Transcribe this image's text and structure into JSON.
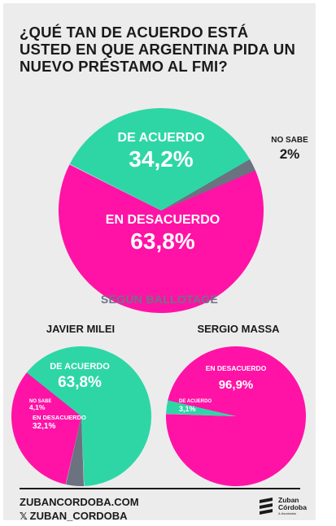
{
  "title": "¿QUÉ TAN DE ACUERDO ESTÁ USTED EN QUE ARGENTINA PIDA UN NUEVO PRÉSTAMO AL FMI?",
  "section_label": "SEGÚN BALLOTAGE",
  "colors": {
    "acuerdo": "#2ed6a6",
    "desacuerdo": "#ff13a6",
    "no_sabe": "#6b7280",
    "text": "#1a1a1a"
  },
  "chart_data": [
    {
      "type": "pie",
      "title": "",
      "slices": [
        {
          "label": "DE ACUERDO",
          "value": 34.2,
          "display": "34,2%",
          "color": "#2ed6a6"
        },
        {
          "label": "NO SABE",
          "value": 2.0,
          "display": "2%",
          "color": "#6b7280"
        },
        {
          "label": "EN DESACUERDO",
          "value": 63.8,
          "display": "63,8%",
          "color": "#ff13a6"
        }
      ]
    },
    {
      "type": "pie",
      "title": "JAVIER MILEI",
      "slices": [
        {
          "label": "DE ACUERDO",
          "value": 63.8,
          "display": "63,8%",
          "color": "#2ed6a6"
        },
        {
          "label": "NO SABE",
          "value": 4.1,
          "display": "4,1%",
          "color": "#6b7280"
        },
        {
          "label": "EN DESACUERDO",
          "value": 32.1,
          "display": "32,1%",
          "color": "#ff13a6"
        }
      ]
    },
    {
      "type": "pie",
      "title": "SERGIO MASSA",
      "slices": [
        {
          "label": "EN DESACUERDO",
          "value": 96.9,
          "display": "96,9%",
          "color": "#ff13a6"
        },
        {
          "label": "DE ACUERDO",
          "value": 3.1,
          "display": "3,1%",
          "color": "#2ed6a6"
        }
      ]
    }
  ],
  "footer": {
    "website": "ZUBANCORDOBA.COM",
    "x_glyph": "𝕏",
    "handle": "ZUBAN_CORDOBA",
    "logo_line1": "Zuban",
    "logo_line2": "Córdoba",
    "logo_line3": "& Asociados"
  }
}
